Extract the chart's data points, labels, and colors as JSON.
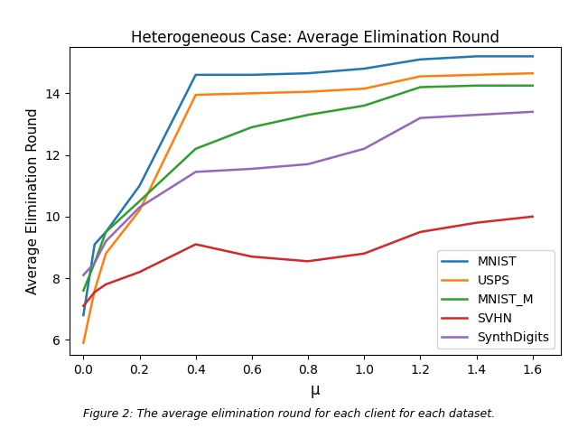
{
  "title": "Heterogeneous Case: Average Elimination Round",
  "xlabel": "μ",
  "ylabel": "Average Elimination Round",
  "caption": "Figure 2: The average elimination round for each client for each dataset.",
  "mu": [
    0.0,
    0.04,
    0.08,
    0.2,
    0.4,
    0.6,
    0.8,
    1.0,
    1.2,
    1.4,
    1.6
  ],
  "MNIST": [
    6.8,
    9.1,
    9.5,
    11.0,
    14.6,
    14.6,
    14.65,
    14.8,
    15.1,
    15.2,
    15.2
  ],
  "USPS": [
    5.9,
    7.6,
    8.8,
    10.2,
    13.95,
    14.0,
    14.05,
    14.15,
    14.55,
    14.6,
    14.65
  ],
  "MNIST_M": [
    7.6,
    8.5,
    9.5,
    10.5,
    12.2,
    12.9,
    13.3,
    13.6,
    14.2,
    14.25,
    14.25
  ],
  "SVHN": [
    7.1,
    7.55,
    7.8,
    8.2,
    9.1,
    8.7,
    8.55,
    8.8,
    9.5,
    9.8,
    10.0
  ],
  "SynthDigits": [
    8.1,
    8.5,
    9.2,
    10.3,
    11.45,
    11.55,
    11.7,
    12.2,
    13.2,
    13.3,
    13.4
  ],
  "colors": {
    "MNIST": "#1f77b4",
    "USPS": "#ff7f0e",
    "MNIST_M": "#2ca02c",
    "SVHN": "#d62728",
    "SynthDigits": "#9467bd"
  },
  "ylim": [
    5.5,
    15.5
  ],
  "xlim": [
    -0.05,
    1.7
  ],
  "yticks": [
    6,
    8,
    10,
    12,
    14
  ],
  "xticks": [
    0.0,
    0.2,
    0.4,
    0.6,
    0.8,
    1.0,
    1.2,
    1.4,
    1.6
  ],
  "figsize": [
    6.4,
    4.74
  ],
  "dpi": 100
}
